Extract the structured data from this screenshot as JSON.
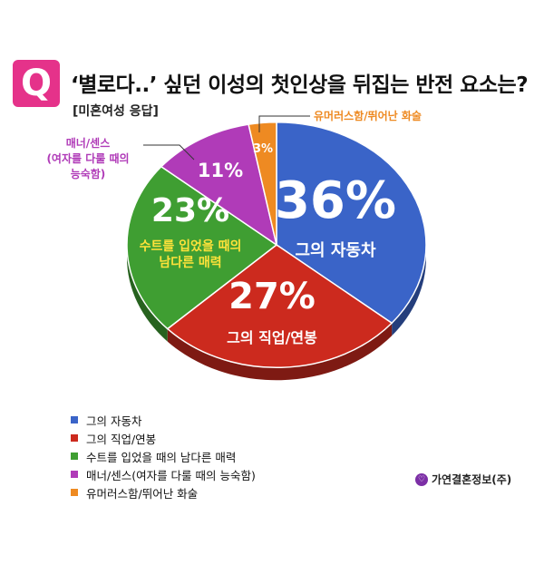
{
  "badge": "Q",
  "title": "‘별로다..’ 싶던 이성의 첫인상을 뒤집는 반전 요소는?",
  "subtitle": "[미혼여성 응답]",
  "source": "가연결혼정보(주)",
  "chart_data": {
    "type": "pie",
    "slices": [
      {
        "label": "그의 자동차",
        "value": 36,
        "color": "#3a64c8",
        "inner_label": "그의 자동차"
      },
      {
        "label": "그의 직업/연봉",
        "value": 27,
        "color": "#cc2a1e",
        "inner_label": "그의 직업/연봉"
      },
      {
        "label": "수트를 입었을 때의 남다른 매력",
        "value": 23,
        "color": "#3f9e32",
        "inner_label": [
          "수트를 입었을 때의",
          "남다른 매력"
        ]
      },
      {
        "label": "매너/센스(여자를 다룰 때의 능숙함)",
        "value": 11,
        "color": "#b03bb8",
        "ext_label": [
          "매너/센스",
          "(여자를 다룰 때의",
          "능숙함)"
        ]
      },
      {
        "label": "유머러스함/뛰어난 화술",
        "value": 3,
        "color": "#ee8a22",
        "ext_label": [
          "유머러스함/뛰어난 화술"
        ]
      }
    ],
    "value_suffix": "%"
  }
}
